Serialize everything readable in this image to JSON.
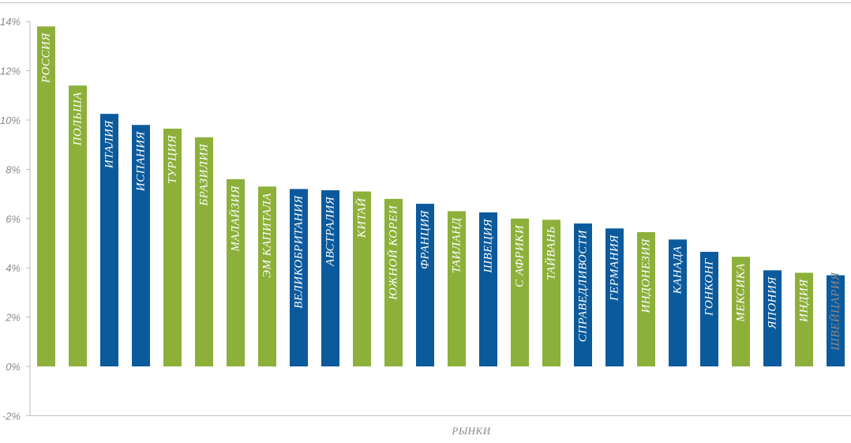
{
  "chart_data": {
    "type": "bar",
    "categories": [
      "РОССИЯ",
      "ПОЛЬША",
      "ИТАЛИЯ",
      "ИСПАНИЯ",
      "ТУРЦИЯ",
      "БРАЗИЛИЯ",
      "МАЛАЙЗИЯ",
      "ЭМ КАПИТАЛА",
      "ВЕЛИКОБРИТАНИЯ",
      "АВСТРАЛИЯ",
      "КИТАЙ",
      "ЮЖНОЙ КОРЕИ",
      "ФРАНЦИЯ",
      "ТАИЛАНД",
      "ШВЕЦИЯ",
      "С АФРИКИ",
      "ТАЙВАНЬ",
      "СПРАВЕДЛИВОСТИ",
      "ГЕРМАНИЯ",
      "ИНДОНЕЗИЯ",
      "КАНАДА",
      "ГОНКОНГ",
      "МЕКСИКА",
      "ЯПОНИЯ",
      "ИНДИЯ",
      "ШВЕЙЦАРИЯ"
    ],
    "values": [
      13.8,
      11.4,
      10.25,
      9.8,
      9.65,
      9.3,
      7.6,
      7.3,
      7.2,
      7.15,
      7.1,
      6.8,
      6.6,
      6.3,
      6.25,
      6.0,
      5.95,
      5.8,
      5.6,
      5.45,
      5.15,
      4.65,
      4.45,
      3.9,
      3.8,
      3.7
    ],
    "bar_colors": [
      "#8db03a",
      "#8db03a",
      "#0b5a9c",
      "#0b5a9c",
      "#8db03a",
      "#8db03a",
      "#8db03a",
      "#8db03a",
      "#0b5a9c",
      "#0b5a9c",
      "#8db03a",
      "#8db03a",
      "#0b5a9c",
      "#8db03a",
      "#0b5a9c",
      "#8db03a",
      "#8db03a",
      "#0b5a9c",
      "#0b5a9c",
      "#8db03a",
      "#0b5a9c",
      "#0b5a9c",
      "#8db03a",
      "#0b5a9c",
      "#8db03a",
      "#0b5a9c"
    ],
    "yticks": [
      "-2%",
      "0%",
      "2%",
      "4%",
      "6%",
      "8%",
      "10%",
      "12%",
      "14%"
    ],
    "ytick_values": [
      -2,
      0,
      2,
      4,
      6,
      8,
      10,
      12,
      14
    ],
    "ylim": [
      -2,
      14
    ],
    "xlabel": "РЫНКИ",
    "ylabel": "",
    "title": "",
    "grid": false,
    "colors": {
      "green": "#8db03a",
      "blue": "#0b5a9c",
      "axis": "#bdbdbd",
      "tick_text": "#8a8a8a"
    }
  }
}
